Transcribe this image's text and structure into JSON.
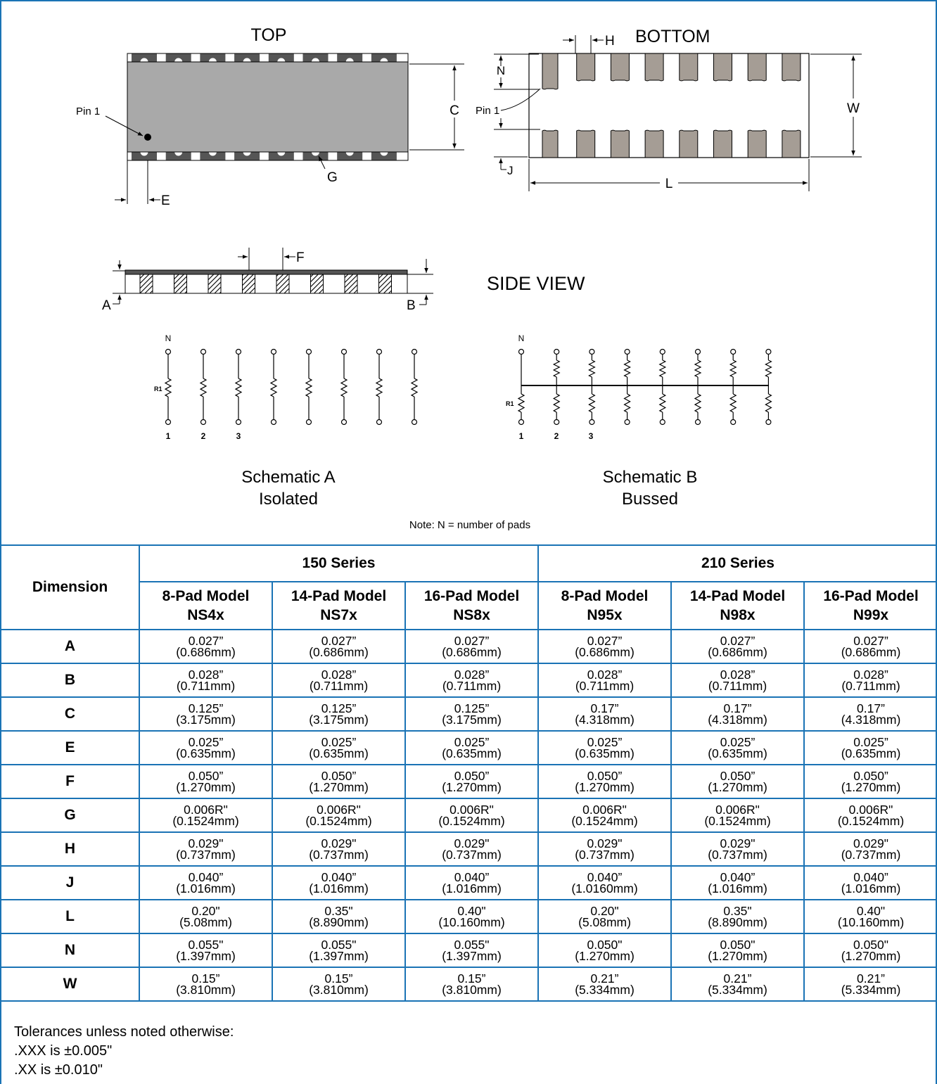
{
  "diagram": {
    "top_label": "TOP",
    "bottom_label": "BOTTOM",
    "side_view_label": "SIDE VIEW",
    "pin1_label": "Pin 1",
    "dim_letters": {
      "A": "A",
      "B": "B",
      "C": "C",
      "E": "E",
      "F": "F",
      "G": "G",
      "H": "H",
      "J": "J",
      "L": "L",
      "N": "N",
      "W": "W"
    },
    "schematic_a": {
      "title": "Schematic A",
      "subtitle": "Isolated"
    },
    "schematic_b": {
      "title": "Schematic B",
      "subtitle": "Bussed"
    },
    "schematic_n": "N",
    "schematic_r1": "R1",
    "pin_numbers": [
      "1",
      "2",
      "3"
    ],
    "note": "Note: N = number of pads"
  },
  "table": {
    "dimension_header": "Dimension",
    "series": [
      "150 Series",
      "210 Series"
    ],
    "models": [
      {
        "line1": "8-Pad Model",
        "line2": "NS4x"
      },
      {
        "line1": "14-Pad Model",
        "line2": "NS7x"
      },
      {
        "line1": "16-Pad Model",
        "line2": "NS8x"
      },
      {
        "line1": "8-Pad Model",
        "line2": "N95x"
      },
      {
        "line1": "14-Pad Model",
        "line2": "N98x"
      },
      {
        "line1": "16-Pad Model",
        "line2": "N99x"
      }
    ],
    "rows": [
      {
        "dim": "A",
        "cells": [
          [
            "0.027”",
            "(0.686mm)"
          ],
          [
            "0.027”",
            "(0.686mm)"
          ],
          [
            "0.027”",
            "(0.686mm)"
          ],
          [
            "0.027”",
            "(0.686mm)"
          ],
          [
            "0.027”",
            "(0.686mm)"
          ],
          [
            "0.027”",
            "(0.686mm)"
          ]
        ]
      },
      {
        "dim": "B",
        "cells": [
          [
            "0.028”",
            "(0.711mm)"
          ],
          [
            "0.028”",
            "(0.711mm)"
          ],
          [
            "0.028”",
            "(0.711mm)"
          ],
          [
            "0.028”",
            "(0.711mm)"
          ],
          [
            "0.028”",
            "(0.711mm)"
          ],
          [
            "0.028”",
            "(0.711mm)"
          ]
        ]
      },
      {
        "dim": "C",
        "cells": [
          [
            "0.125”",
            "(3.175mm)"
          ],
          [
            "0.125”",
            "(3.175mm)"
          ],
          [
            "0.125”",
            "(3.175mm)"
          ],
          [
            "0.17”",
            "(4.318mm)"
          ],
          [
            "0.17”",
            "(4.318mm)"
          ],
          [
            "0.17”",
            "(4.318mm)"
          ]
        ]
      },
      {
        "dim": "E",
        "cells": [
          [
            "0.025”",
            "(0.635mm)"
          ],
          [
            "0.025”",
            "(0.635mm)"
          ],
          [
            "0.025”",
            "(0.635mm)"
          ],
          [
            "0.025”",
            "(0.635mm)"
          ],
          [
            "0.025”",
            "(0.635mm)"
          ],
          [
            "0.025”",
            "(0.635mm)"
          ]
        ]
      },
      {
        "dim": "F",
        "cells": [
          [
            "0.050”",
            "(1.270mm)"
          ],
          [
            "0.050”",
            "(1.270mm)"
          ],
          [
            "0.050”",
            "(1.270mm)"
          ],
          [
            "0.050”",
            "(1.270mm)"
          ],
          [
            "0.050”",
            "(1.270mm)"
          ],
          [
            "0.050”",
            "(1.270mm)"
          ]
        ]
      },
      {
        "dim": "G",
        "cells": [
          [
            "0.006R\"",
            "(0.1524mm)"
          ],
          [
            "0.006R\"",
            "(0.1524mm)"
          ],
          [
            "0.006R\"",
            "(0.1524mm)"
          ],
          [
            "0.006R\"",
            "(0.1524mm)"
          ],
          [
            "0.006R\"",
            "(0.1524mm)"
          ],
          [
            "0.006R\"",
            "(0.1524mm)"
          ]
        ]
      },
      {
        "dim": "H",
        "cells": [
          [
            "0.029\"",
            "(0.737mm)"
          ],
          [
            "0.029\"",
            "(0.737mm)"
          ],
          [
            "0.029\"",
            "(0.737mm)"
          ],
          [
            "0.029\"",
            "(0.737mm)"
          ],
          [
            "0.029\"",
            "(0.737mm)"
          ],
          [
            "0.029\"",
            "(0.737mm)"
          ]
        ]
      },
      {
        "dim": "J",
        "cells": [
          [
            "0.040”",
            "(1.016mm)"
          ],
          [
            "0.040”",
            "(1.016mm)"
          ],
          [
            "0.040”",
            "(1.016mm)"
          ],
          [
            "0.040”",
            "(1.0160mm)"
          ],
          [
            "0.040”",
            "(1.016mm)"
          ],
          [
            "0.040”",
            "(1.016mm)"
          ]
        ]
      },
      {
        "dim": "L",
        "cells": [
          [
            "0.20\"",
            "(5.08mm)"
          ],
          [
            "0.35\"",
            "(8.890mm)"
          ],
          [
            "0.40\"",
            "(10.160mm)"
          ],
          [
            "0.20\"",
            "(5.08mm)"
          ],
          [
            "0.35\"",
            "(8.890mm)"
          ],
          [
            "0.40\"",
            "(10.160mm)"
          ]
        ]
      },
      {
        "dim": "N",
        "cells": [
          [
            "0.055\"",
            "(1.397mm)"
          ],
          [
            "0.055\"",
            "(1.397mm)"
          ],
          [
            "0.055\"",
            "(1.397mm)"
          ],
          [
            "0.050\"",
            "(1.270mm)"
          ],
          [
            "0.050\"",
            "(1.270mm)"
          ],
          [
            "0.050\"",
            "(1.270mm)"
          ]
        ]
      },
      {
        "dim": "W",
        "cells": [
          [
            "0.15”",
            "(3.810mm)"
          ],
          [
            "0.15”",
            "(3.810mm)"
          ],
          [
            "0.15”",
            "(3.810mm)"
          ],
          [
            "0.21”",
            "(5.334mm)"
          ],
          [
            "0.21”",
            "(5.334mm)"
          ],
          [
            "0.21”",
            "(5.334mm)"
          ]
        ]
      }
    ]
  },
  "tolerances": {
    "heading": "Tolerances unless noted otherwise:",
    "xxx": ".XXX is ±0.005\"",
    "xx": ".XX is ±0.010\""
  },
  "colors": {
    "border": "#1a73b5",
    "body_fill": "#a9a9a9",
    "pad_fill": "#a59d95",
    "edge_fill": "#555555"
  }
}
